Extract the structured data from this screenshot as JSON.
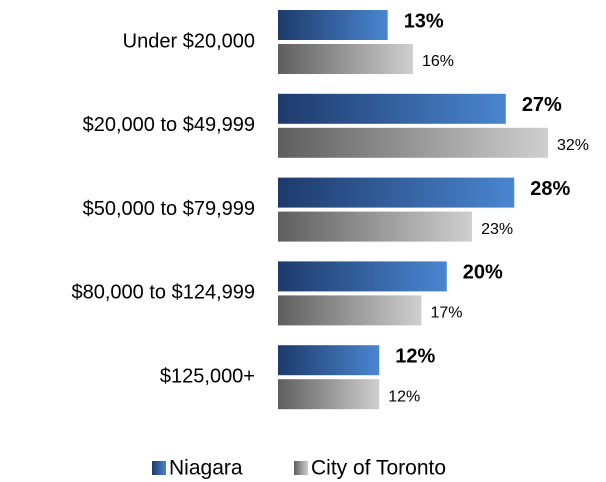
{
  "chart_data": {
    "type": "bar",
    "orientation": "horizontal",
    "categories": [
      "Under $20,000",
      "$20,000 to $49,999",
      "$50,000 to $79,999",
      "$80,000 to $124,999",
      "$125,000+"
    ],
    "series": [
      {
        "name": "Niagara",
        "color": "#4a86d0",
        "values": [
          13,
          27,
          28,
          20,
          12
        ],
        "value_labels": [
          "13%",
          "27%",
          "28%",
          "20%",
          "12%"
        ]
      },
      {
        "name": "City of Toronto",
        "color": "#cfcfcf",
        "values": [
          16,
          32,
          23,
          17,
          12
        ],
        "value_labels": [
          "16%",
          "32%",
          "23%",
          "17%",
          "12%"
        ]
      }
    ],
    "legend": "bottom"
  }
}
